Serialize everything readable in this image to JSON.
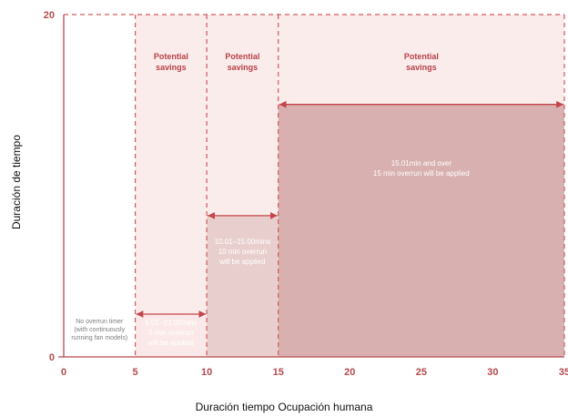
{
  "chart_data": {
    "type": "area",
    "title": "",
    "xlabel": "Duración tiempo Ocupación humana",
    "ylabel": "Duración de tiempo",
    "xlim": [
      0,
      35
    ],
    "ylim": [
      0,
      20
    ],
    "x_ticks": [
      "0",
      "5",
      "10",
      "15",
      "20",
      "25",
      "30",
      "35"
    ],
    "y_ticks": [
      "0",
      "20"
    ],
    "bands": [
      {
        "x_start": 0,
        "x_end": 5,
        "height": 0,
        "label": [
          "No overrun timer",
          "(with continuously",
          "running fan models)"
        ]
      },
      {
        "x_start": 5,
        "x_end": 10,
        "height": 2.5,
        "label": [
          "5.01–10.00mins",
          "5 min overrun",
          "will be applied"
        ]
      },
      {
        "x_start": 10,
        "x_end": 15,
        "height": 8.25,
        "label": [
          "10.01–15.00mins",
          "10 min overrun",
          "will be applied"
        ]
      },
      {
        "x_start": 15,
        "x_end": 35,
        "height": 14.75,
        "label": [
          "15.01min and over",
          "15 min overrun will be applied"
        ]
      }
    ],
    "savings_regions": [
      {
        "x_start": 5,
        "x_end": 10,
        "label": [
          "Potential",
          "savings"
        ]
      },
      {
        "x_start": 10,
        "x_end": 15,
        "label": [
          "Potential",
          "savings"
        ]
      },
      {
        "x_start": 15,
        "x_end": 35,
        "label": [
          "Potential",
          "savings"
        ]
      }
    ],
    "colors": {
      "savings_fill": "#f9eceb",
      "band_light": "#fae9e8",
      "band_mid": "#e8cfcd",
      "band_dark": "#d9b0b0",
      "dashed": "#cf5a5e",
      "arrow": "#c4454b",
      "axis": "#b7484d",
      "savings_text": "#b9404a",
      "band_text": "#ffffff",
      "band_text_dark": "#7d7d7d",
      "tick_text": "#b24a4c"
    }
  }
}
